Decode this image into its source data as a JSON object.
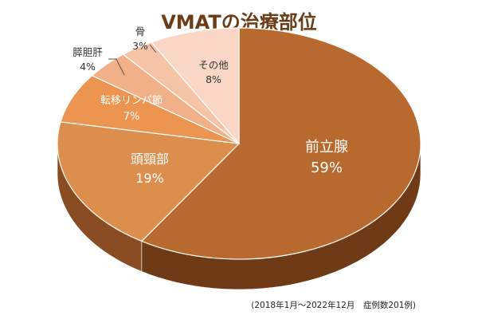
{
  "chart_data": {
    "type": "pie",
    "title": "VMATの治療部位",
    "note": "(2018年1月～2022年12月　症例数201例)",
    "categories": [
      "前立腺",
      "頭頸部",
      "転移リンパ節",
      "膵胆肝",
      "骨",
      "その他"
    ],
    "values": [
      59,
      19,
      7,
      4,
      3,
      8
    ],
    "labels": [
      "59%",
      "19%",
      "7%",
      "4%",
      "3%",
      "8%"
    ],
    "colors": [
      "#b86a2e",
      "#dc8e4c",
      "#ec9550",
      "#f2b088",
      "#f5c4a7",
      "#f9d6c5"
    ],
    "side_colors": [
      "#6f3a16",
      "#8a4c22",
      "#9a5527",
      "#a76131",
      "#b06c3a",
      "#b87745"
    ],
    "label_colors": [
      "#ffffff",
      "#ffffff",
      "#ffffff",
      "#333333",
      "#333333",
      "#333333"
    ],
    "style": "3d"
  }
}
